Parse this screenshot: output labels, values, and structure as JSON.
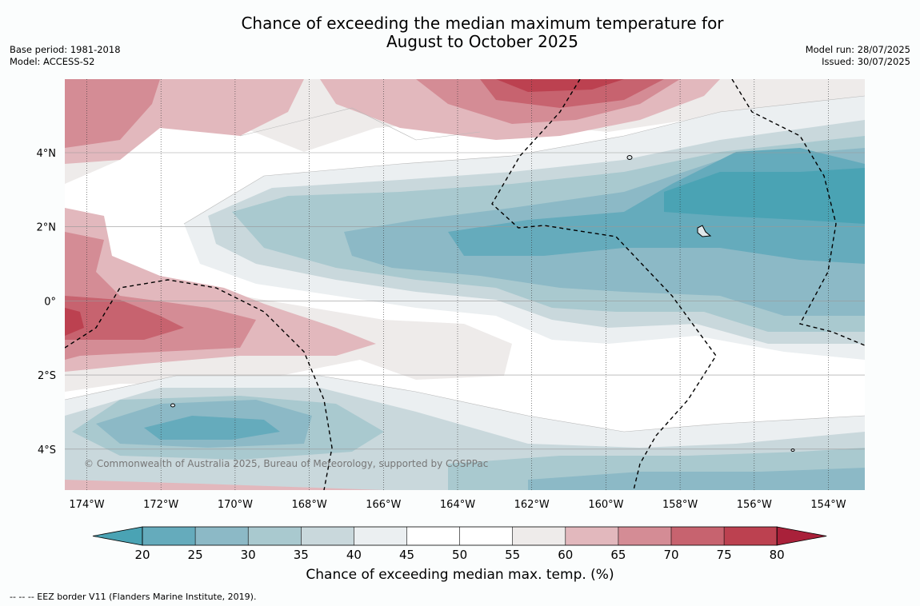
{
  "header": {
    "title_line1": "Chance of exceeding the median maximum temperature for",
    "title_line2": "August to October 2025",
    "base_period": "Base period: 1981-2018",
    "model": "Model: ACCESS-S2",
    "model_run": "Model run: 28/07/2025",
    "issued": "Issued: 30/07/2025"
  },
  "map": {
    "lon_ticks": [
      "174°W",
      "172°W",
      "170°W",
      "168°W",
      "166°W",
      "164°W",
      "162°W",
      "160°W",
      "158°W",
      "156°W",
      "154°W"
    ],
    "lat_ticks": [
      "4°N",
      "2°N",
      "0°",
      "2°S",
      "4°S"
    ],
    "copyright": "© Commonwealth of Australia 2025, Bureau of Meteorology, supported by COSPPac"
  },
  "colorbar": {
    "ticks": [
      "20",
      "25",
      "30",
      "35",
      "40",
      "45",
      "50",
      "55",
      "60",
      "65",
      "70",
      "75",
      "80"
    ],
    "colors": [
      "#4aa3b4",
      "#65abbc",
      "#8cb9c6",
      "#a9c9cf",
      "#c9d8dc",
      "#ebeff1",
      "#ffffff",
      "#ffffff",
      "#eeebea",
      "#e2b8bd",
      "#d48c95",
      "#c7636f",
      "#bc4150",
      "#a9213a"
    ],
    "label": "Chance of exceeding median max. temp. (%)"
  },
  "footnote": "--  --  -- EEZ border V11 (Flanders Marine Institute, 2019)."
}
